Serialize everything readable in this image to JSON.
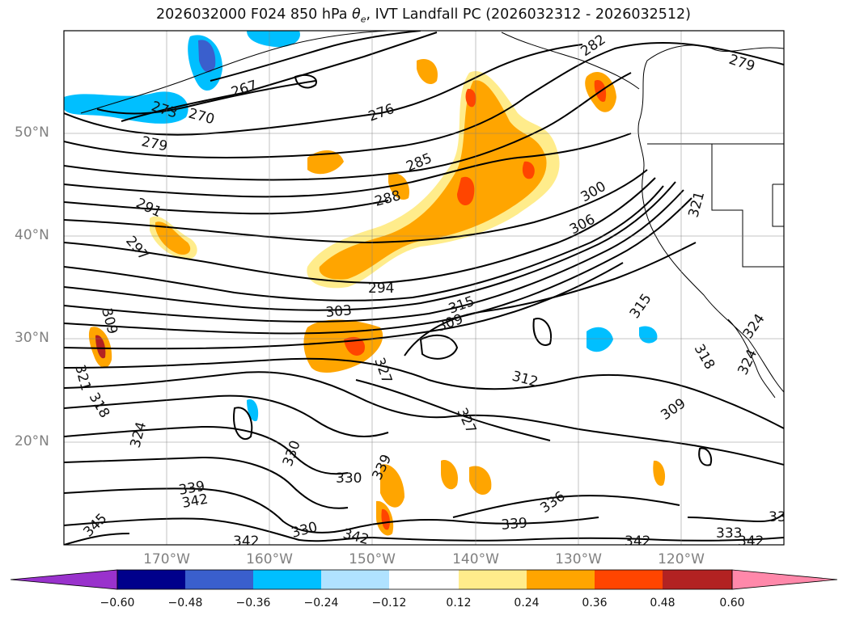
{
  "title": {
    "prefix": "2026032000 F024 850 hPa ",
    "theta": "θ",
    "theta_sub": "e",
    "suffix": ", IVT Landfall PC (2026032312 - 2026032512)"
  },
  "map": {
    "projection": "PlateCarree",
    "lon_range": [
      -180,
      -110
    ],
    "lat_range": [
      10,
      60
    ],
    "gridlines": true,
    "lat_ticks": [
      "50°N",
      "40°N",
      "30°N",
      "20°N"
    ],
    "lon_ticks": [
      "170°W",
      "160°W",
      "150°W",
      "140°W",
      "130°W",
      "120°W"
    ],
    "contour_field": "850 hPa theta-e (K)",
    "contour_labels": [
      "267",
      "270",
      "273",
      "276",
      "279",
      "282",
      "285",
      "288",
      "291",
      "294",
      "297",
      "300",
      "303",
      "306",
      "309",
      "312",
      "315",
      "318",
      "321",
      "324",
      "327",
      "330",
      "333",
      "336",
      "339",
      "342",
      "345"
    ],
    "shaded_field": "IVT Landfall PC",
    "positive_color": "#ffa500",
    "negative_color": "#00bfff"
  },
  "colorbar": {
    "colors": [
      "#9932cc",
      "#00008b",
      "#3a5fcd",
      "#00bfff",
      "#b0e2ff",
      "#ffffff",
      "#ffec8b",
      "#ffa500",
      "#ff4500",
      "#b22222",
      "#ff88aa"
    ],
    "ticks": [
      "−0.60",
      "−0.48",
      "−0.36",
      "−0.24",
      "−0.12",
      "0.12",
      "0.24",
      "0.36",
      "0.48",
      "0.60"
    ],
    "extend": "both"
  }
}
